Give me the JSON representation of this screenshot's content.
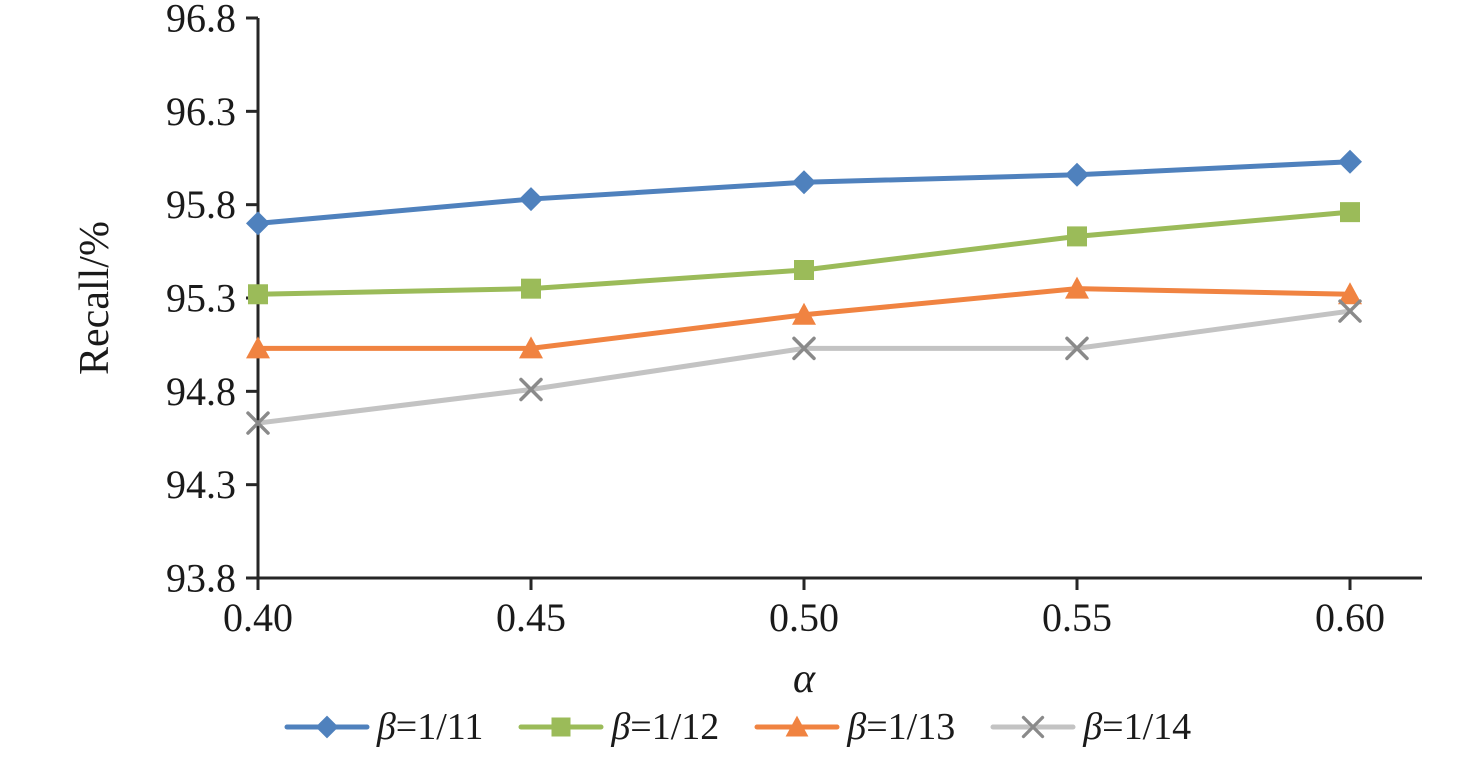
{
  "chart_data": {
    "type": "line",
    "title": "",
    "xlabel": "α",
    "ylabel": "Recall/%",
    "x": [
      0.4,
      0.45,
      0.5,
      0.55,
      0.6
    ],
    "xlim": [
      0.4,
      0.6
    ],
    "ylim": [
      93.8,
      96.8
    ],
    "ytick_step": 0.5,
    "grid": false,
    "legend_position": "bottom",
    "series": [
      {
        "name": "β=1/11",
        "color": "#4f81bd",
        "marker": "diamond",
        "marker_color": "#4f81bd",
        "values": [
          95.7,
          95.83,
          95.92,
          95.96,
          96.03
        ]
      },
      {
        "name": "β=1/12",
        "color": "#9bbb59",
        "marker": "square",
        "marker_color": "#9bbb59",
        "values": [
          95.32,
          95.35,
          95.45,
          95.63,
          95.76
        ]
      },
      {
        "name": "β=1/13",
        "color": "#f08341",
        "marker": "triangle",
        "marker_color": "#f08341",
        "values": [
          95.03,
          95.03,
          95.21,
          95.35,
          95.32
        ]
      },
      {
        "name": "β=1/14",
        "color": "#c3c3c3",
        "marker": "x",
        "marker_color": "#8a8a8a",
        "values": [
          94.63,
          94.81,
          95.03,
          95.03,
          95.23
        ]
      }
    ]
  },
  "colors": {
    "axis": "#262626",
    "text": "#1a1a1a",
    "background": "#ffffff"
  }
}
